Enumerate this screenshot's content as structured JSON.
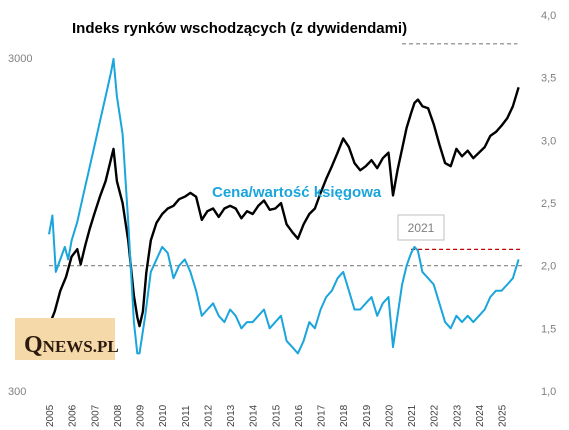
{
  "chart_data": {
    "type": "line",
    "title": "Indeks rynków wschodzących (z dywidendami)",
    "x_range": [
      2005.0,
      2025.9
    ],
    "x_ticks": [
      "2005",
      "2006",
      "2007",
      "2008",
      "2009",
      "2010",
      "2011",
      "2012",
      "2013",
      "2014",
      "2015",
      "2016",
      "2017",
      "2018",
      "2019",
      "2020",
      "2021",
      "2022",
      "2023",
      "2024",
      "2025"
    ],
    "left_axis": {
      "scale": "log",
      "range": [
        300,
        3000
      ],
      "tick_labels": [
        "300",
        "3000"
      ]
    },
    "right_axis": {
      "scale": "linear",
      "range": [
        1.0,
        4.0
      ],
      "tick_labels": [
        "1,0",
        "1,5",
        "2,0",
        "2,5",
        "3,0",
        "3,5",
        "4,0"
      ]
    },
    "grid": false,
    "series": [
      {
        "label": "",
        "axis": "left",
        "color": "#000000",
        "x": [
          2005.0,
          2005.25,
          2005.5,
          2005.75,
          2006.0,
          2006.25,
          2006.4,
          2006.6,
          2006.8,
          2007.0,
          2007.25,
          2007.5,
          2007.75,
          2007.85,
          2008.0,
          2008.25,
          2008.5,
          2008.75,
          2008.9,
          2009.0,
          2009.15,
          2009.3,
          2009.5,
          2009.75,
          2010.0,
          2010.25,
          2010.5,
          2010.75,
          2011.0,
          2011.25,
          2011.5,
          2011.75,
          2012.0,
          2012.25,
          2012.5,
          2012.75,
          2013.0,
          2013.25,
          2013.5,
          2013.75,
          2014.0,
          2014.25,
          2014.5,
          2014.75,
          2015.0,
          2015.25,
          2015.5,
          2015.75,
          2016.0,
          2016.25,
          2016.5,
          2016.75,
          2017.0,
          2017.25,
          2017.5,
          2017.75,
          2018.0,
          2018.25,
          2018.5,
          2018.75,
          2019.0,
          2019.25,
          2019.5,
          2019.75,
          2020.0,
          2020.2,
          2020.4,
          2020.6,
          2020.8,
          2021.0,
          2021.15,
          2021.3,
          2021.5,
          2021.75,
          2022.0,
          2022.25,
          2022.5,
          2022.75,
          2023.0,
          2023.25,
          2023.5,
          2023.75,
          2024.0,
          2024.25,
          2024.5,
          2024.75,
          2025.0,
          2025.25,
          2025.5,
          2025.75
        ],
        "y": [
          470,
          520,
          600,
          660,
          760,
          800,
          720,
          820,
          920,
          1020,
          1150,
          1280,
          1500,
          1600,
          1280,
          1100,
          850,
          580,
          500,
          470,
          520,
          680,
          850,
          960,
          1020,
          1060,
          1080,
          1130,
          1150,
          1180,
          1150,
          980,
          1040,
          1060,
          1000,
          1060,
          1080,
          1060,
          990,
          1040,
          1020,
          1080,
          1120,
          1050,
          1060,
          1100,
          950,
          900,
          860,
          950,
          1020,
          1060,
          1180,
          1300,
          1420,
          1560,
          1720,
          1620,
          1450,
          1380,
          1420,
          1480,
          1400,
          1500,
          1560,
          1160,
          1380,
          1600,
          1850,
          2050,
          2200,
          2250,
          2150,
          2120,
          1900,
          1650,
          1450,
          1420,
          1600,
          1520,
          1580,
          1500,
          1560,
          1620,
          1750,
          1800,
          1880,
          1980,
          2150,
          2450
        ]
      },
      {
        "label": "Cena/wartość księgowa",
        "axis": "right",
        "color": "#1aa5dc",
        "x": [
          2005.0,
          2005.15,
          2005.3,
          2005.5,
          2005.7,
          2005.85,
          2006.0,
          2006.25,
          2006.5,
          2006.75,
          2007.0,
          2007.25,
          2007.5,
          2007.75,
          2007.85,
          2008.0,
          2008.25,
          2008.5,
          2008.75,
          2008.9,
          2009.0,
          2009.25,
          2009.5,
          2009.75,
          2010.0,
          2010.25,
          2010.5,
          2010.75,
          2011.0,
          2011.25,
          2011.5,
          2011.75,
          2012.0,
          2012.25,
          2012.5,
          2012.75,
          2013.0,
          2013.25,
          2013.5,
          2013.75,
          2014.0,
          2014.25,
          2014.5,
          2014.75,
          2015.0,
          2015.25,
          2015.5,
          2015.75,
          2016.0,
          2016.25,
          2016.5,
          2016.75,
          2017.0,
          2017.25,
          2017.5,
          2017.75,
          2018.0,
          2018.25,
          2018.5,
          2018.75,
          2019.0,
          2019.25,
          2019.5,
          2019.75,
          2020.0,
          2020.2,
          2020.4,
          2020.6,
          2020.8,
          2021.0,
          2021.15,
          2021.3,
          2021.5,
          2021.75,
          2022.0,
          2022.25,
          2022.5,
          2022.75,
          2023.0,
          2023.25,
          2023.5,
          2023.75,
          2024.0,
          2024.25,
          2024.5,
          2024.75,
          2025.0,
          2025.25,
          2025.5,
          2025.75
        ],
        "y": [
          2.25,
          2.4,
          1.95,
          2.05,
          2.15,
          2.05,
          2.2,
          2.35,
          2.55,
          2.75,
          2.95,
          3.15,
          3.35,
          3.55,
          3.65,
          3.35,
          3.05,
          2.35,
          1.55,
          1.3,
          1.3,
          1.6,
          1.95,
          2.05,
          2.15,
          2.1,
          1.9,
          2.0,
          2.05,
          1.95,
          1.8,
          1.6,
          1.65,
          1.7,
          1.6,
          1.55,
          1.65,
          1.6,
          1.5,
          1.55,
          1.55,
          1.6,
          1.65,
          1.5,
          1.55,
          1.6,
          1.4,
          1.35,
          1.3,
          1.4,
          1.55,
          1.5,
          1.65,
          1.75,
          1.8,
          1.9,
          1.95,
          1.8,
          1.65,
          1.65,
          1.7,
          1.75,
          1.6,
          1.7,
          1.75,
          1.35,
          1.6,
          1.85,
          2.0,
          2.1,
          2.15,
          2.12,
          1.95,
          1.9,
          1.85,
          1.7,
          1.55,
          1.5,
          1.6,
          1.55,
          1.6,
          1.55,
          1.6,
          1.65,
          1.75,
          1.8,
          1.8,
          1.85,
          1.9,
          2.05
        ]
      }
    ],
    "reference_lines": [
      {
        "color": "#808080",
        "axis": "right",
        "y": 3.77,
        "x_from": 2020.6,
        "x_to": 2025.7,
        "style": "dashed"
      },
      {
        "color": "#c00000",
        "axis": "right",
        "y": 2.13,
        "x_from": 2021.0,
        "x_to": 2025.9,
        "style": "dashed"
      },
      {
        "color": "#808080",
        "axis": "right",
        "y": 2.0,
        "x_from": 2005.0,
        "x_to": 2025.9,
        "style": "dashed"
      }
    ],
    "annotations": [
      {
        "text": "2021"
      }
    ]
  },
  "logo": {
    "q": "Q",
    "rest": "NEWS.PL"
  }
}
